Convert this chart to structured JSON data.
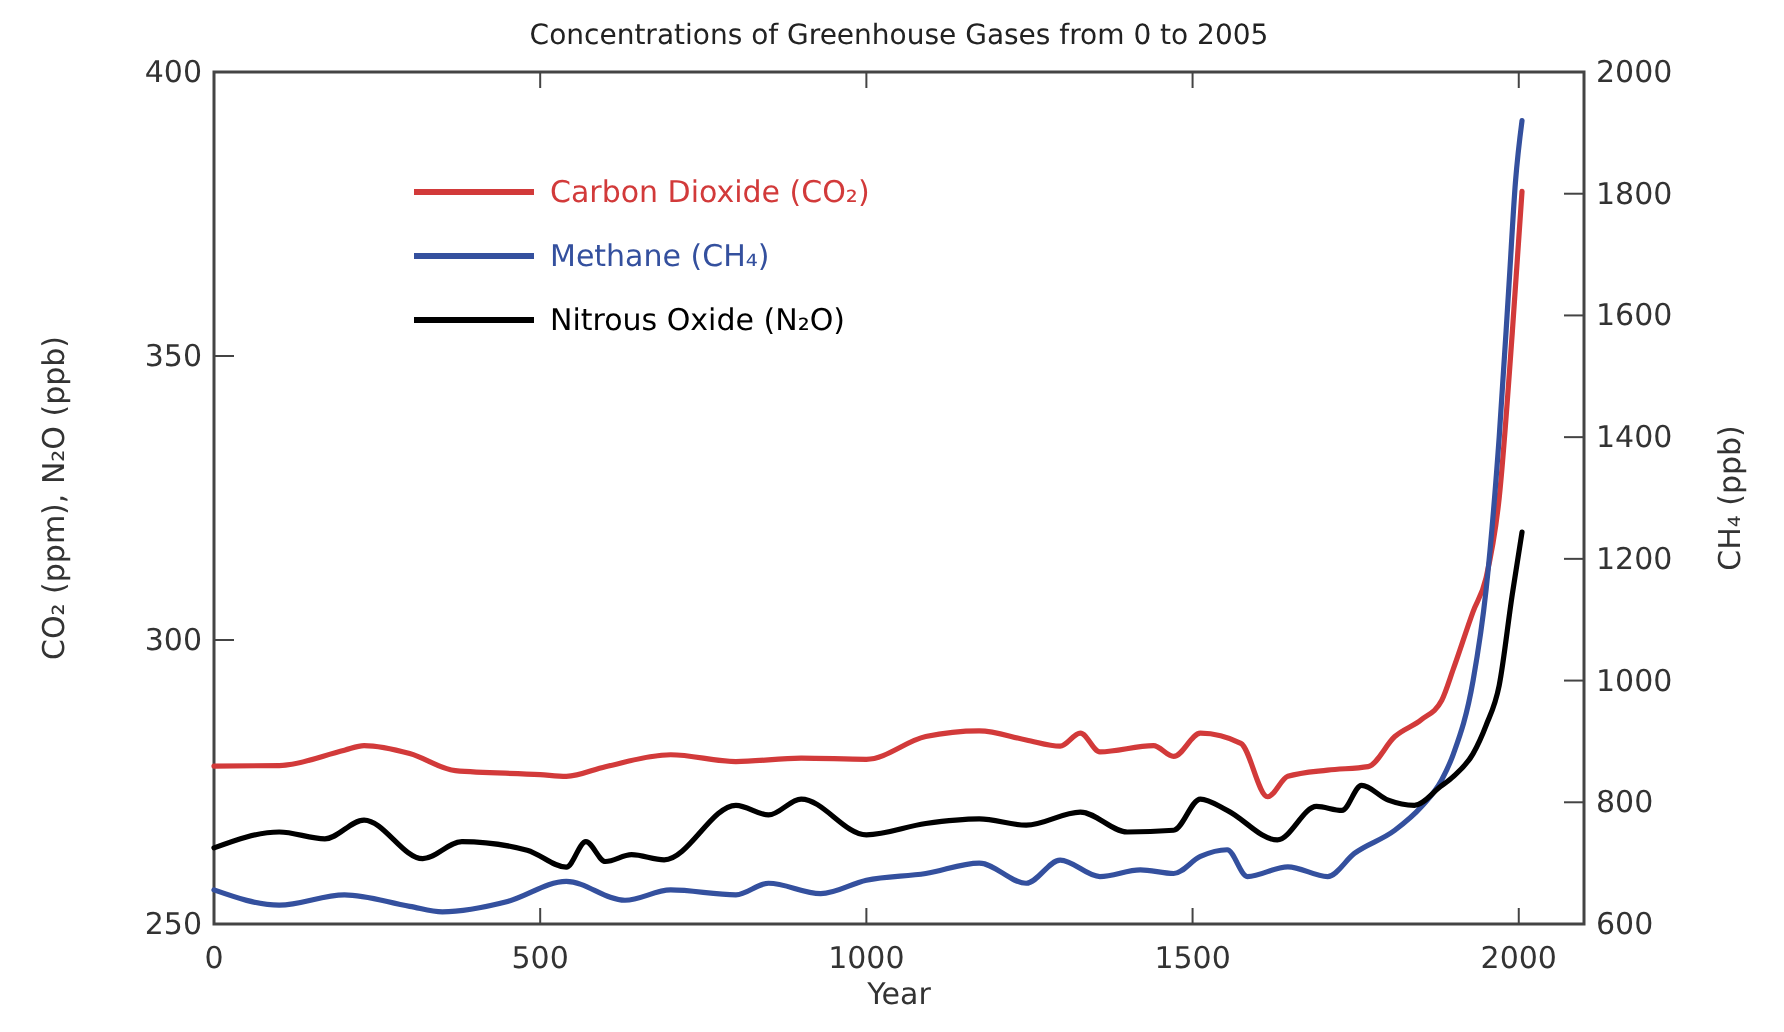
{
  "chart_data": {
    "type": "line",
    "title": "Concentrations of Greenhouse Gases from 0 to 2005",
    "xlabel": "Year",
    "ylabel": "CO₂ (ppm), N₂O (ppb)",
    "y2label": "CH₄ (ppb)",
    "xlim": [
      0,
      2100
    ],
    "xticks": [
      0,
      500,
      1000,
      1500,
      2000
    ],
    "ylim": [
      250,
      400
    ],
    "yticks": [
      250,
      300,
      350,
      400
    ],
    "y2lim": [
      600,
      2000
    ],
    "y2ticks": [
      600,
      800,
      1000,
      1200,
      1400,
      1600,
      1800,
      2000
    ],
    "legend": "top left",
    "grid": false,
    "line_style": "solid",
    "marker": "none",
    "series": [
      {
        "name": "Carbon Dioxide (CO₂)",
        "color": "#d23a3a",
        "x": [
          0,
          100,
          200,
          230,
          300,
          370,
          500,
          540,
          600,
          700,
          800,
          900,
          1000,
          1091,
          1173,
          1245,
          1297,
          1328,
          1358,
          1440,
          1471,
          1512,
          1574,
          1615,
          1646,
          1707,
          1769,
          1810,
          1851,
          1882,
          1900,
          1930,
          1950,
          1970,
          1990,
          2005
        ],
        "values": [
          277.8,
          277.9,
          280.6,
          281.4,
          280,
          277,
          276.3,
          276,
          277.7,
          279.8,
          278.6,
          279.2,
          279,
          283,
          284,
          282.4,
          281.3,
          283.6,
          280.3,
          281.4,
          279.5,
          283.6,
          281.8,
          272.4,
          276,
          277.1,
          277.7,
          283,
          286,
          289.4,
          295,
          305,
          311,
          325,
          354,
          379
        ]
      },
      {
        "name": "Methane (CH₄)",
        "color": "#34509e",
        "axis": "y2",
        "x": [
          0,
          100,
          200,
          300,
          350,
          450,
          540,
          630,
          700,
          800,
          850,
          930,
          1000,
          1091,
          1173,
          1245,
          1297,
          1358,
          1420,
          1471,
          1512,
          1553,
          1584,
          1646,
          1707,
          1748,
          1810,
          1851,
          1882,
          1900,
          1930,
          1950,
          1970,
          1985,
          1995,
          2005
        ],
        "values": [
          656,
          631,
          648,
          629,
          620,
          637,
          670,
          639,
          656,
          648,
          667,
          650,
          672,
          683,
          700,
          667,
          705,
          678,
          689,
          683,
          711,
          722,
          678,
          694,
          678,
          716,
          754,
          793,
          837,
          880,
          1000,
          1150,
          1400,
          1650,
          1820,
          1920
        ]
      },
      {
        "name": "Nitrous Oxide (N₂O)",
        "color": "#000000",
        "x": [
          0,
          100,
          170,
          230,
          320,
          380,
          480,
          540,
          570,
          600,
          640,
          690,
          800,
          850,
          900,
          1000,
          1091,
          1173,
          1245,
          1328,
          1400,
          1471,
          1512,
          1553,
          1630,
          1690,
          1729,
          1759,
          1800,
          1840,
          1880,
          1900,
          1930,
          1950,
          1970,
          1990,
          2005
        ],
        "values": [
          263.4,
          266.2,
          265,
          268.3,
          261.5,
          264.5,
          263,
          260,
          264.5,
          261,
          262.2,
          261.3,
          270.9,
          269.2,
          272,
          265.7,
          267.7,
          268.5,
          267.4,
          269.7,
          266.2,
          266.5,
          272,
          270,
          264.8,
          270.7,
          270,
          274.4,
          271.8,
          270.9,
          274.2,
          276,
          280,
          285,
          292,
          308,
          319
        ]
      }
    ]
  }
}
